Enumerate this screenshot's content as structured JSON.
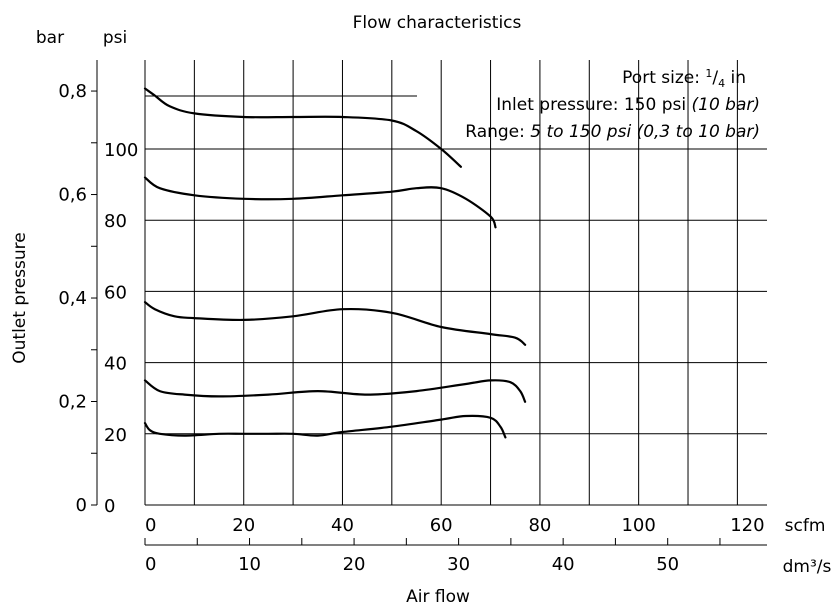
{
  "chart_data": {
    "type": "line",
    "title": "Flow characteristics",
    "xlabel": "Air flow",
    "ylabel": "Outlet pressure",
    "x_axes": [
      {
        "unit": "scfm",
        "range": [
          0,
          126
        ],
        "ticks": [
          0,
          20,
          40,
          60,
          80,
          100,
          120
        ],
        "tick_labels": [
          "0",
          "20",
          "40",
          "60",
          "80",
          "100",
          "120"
        ]
      },
      {
        "unit": "dm³/s",
        "range": [
          0,
          59.5
        ],
        "ticks": [
          0,
          10,
          20,
          30,
          40,
          50
        ],
        "tick_labels": [
          "0",
          "10",
          "20",
          "30",
          "40",
          "50"
        ]
      }
    ],
    "y_axes": [
      {
        "unit": "bar",
        "range": [
          0,
          0.86
        ],
        "ticks": [
          0,
          0.2,
          0.4,
          0.6,
          0.8
        ],
        "tick_labels": [
          "0",
          "0,2",
          "0,4",
          "0,6",
          "0,8"
        ]
      },
      {
        "unit": "psi",
        "range": [
          0,
          125
        ],
        "ticks": [
          0,
          20,
          40,
          60,
          80,
          100
        ],
        "tick_labels": [
          "0",
          "20",
          "40",
          "60",
          "80",
          "100"
        ]
      }
    ],
    "info": {
      "port_prefix": "Port size: ",
      "port_num": "1",
      "port_den": "4",
      "port_suffix": " in",
      "inlet_prefix": "Inlet pressure: 150 psi ",
      "inlet_italic": "(10 bar)",
      "range_prefix": "Range: ",
      "range_italic": "5 to 150 psi (0,3 to 10 bar)"
    },
    "grid": true,
    "series_units": {
      "x": "scfm",
      "y": "psi"
    },
    "series": [
      {
        "x": [
          0,
          2,
          5,
          10,
          20,
          30,
          40,
          50,
          55,
          60,
          64
        ],
        "y": [
          117,
          115,
          112,
          110,
          109,
          109,
          109,
          108,
          105,
          100,
          95
        ]
      },
      {
        "x": [
          0,
          3,
          10,
          20,
          30,
          40,
          50,
          55,
          60,
          65,
          70,
          71
        ],
        "y": [
          92,
          89,
          87,
          86,
          86,
          87,
          88,
          89,
          89,
          86,
          81,
          78
        ]
      },
      {
        "x": [
          0,
          2,
          6,
          10,
          20,
          30,
          40,
          50,
          60,
          70,
          75,
          77
        ],
        "y": [
          57,
          55,
          53,
          52.5,
          52,
          53,
          55,
          54,
          50,
          48,
          47,
          45
        ]
      },
      {
        "x": [
          0,
          3,
          8,
          15,
          25,
          35,
          45,
          55,
          65,
          70,
          74,
          76,
          77
        ],
        "y": [
          35,
          32,
          31,
          30.5,
          31,
          32,
          31,
          32,
          34,
          35,
          34.5,
          32,
          29
        ]
      },
      {
        "x": [
          0,
          1,
          3,
          8,
          15,
          20,
          25,
          30,
          35,
          40,
          50,
          60,
          65,
          70,
          72,
          73
        ],
        "y": [
          23,
          21,
          20,
          19.5,
          20,
          20,
          20,
          20,
          19.5,
          20.5,
          22,
          24,
          25,
          24.5,
          22,
          19
        ]
      }
    ]
  }
}
